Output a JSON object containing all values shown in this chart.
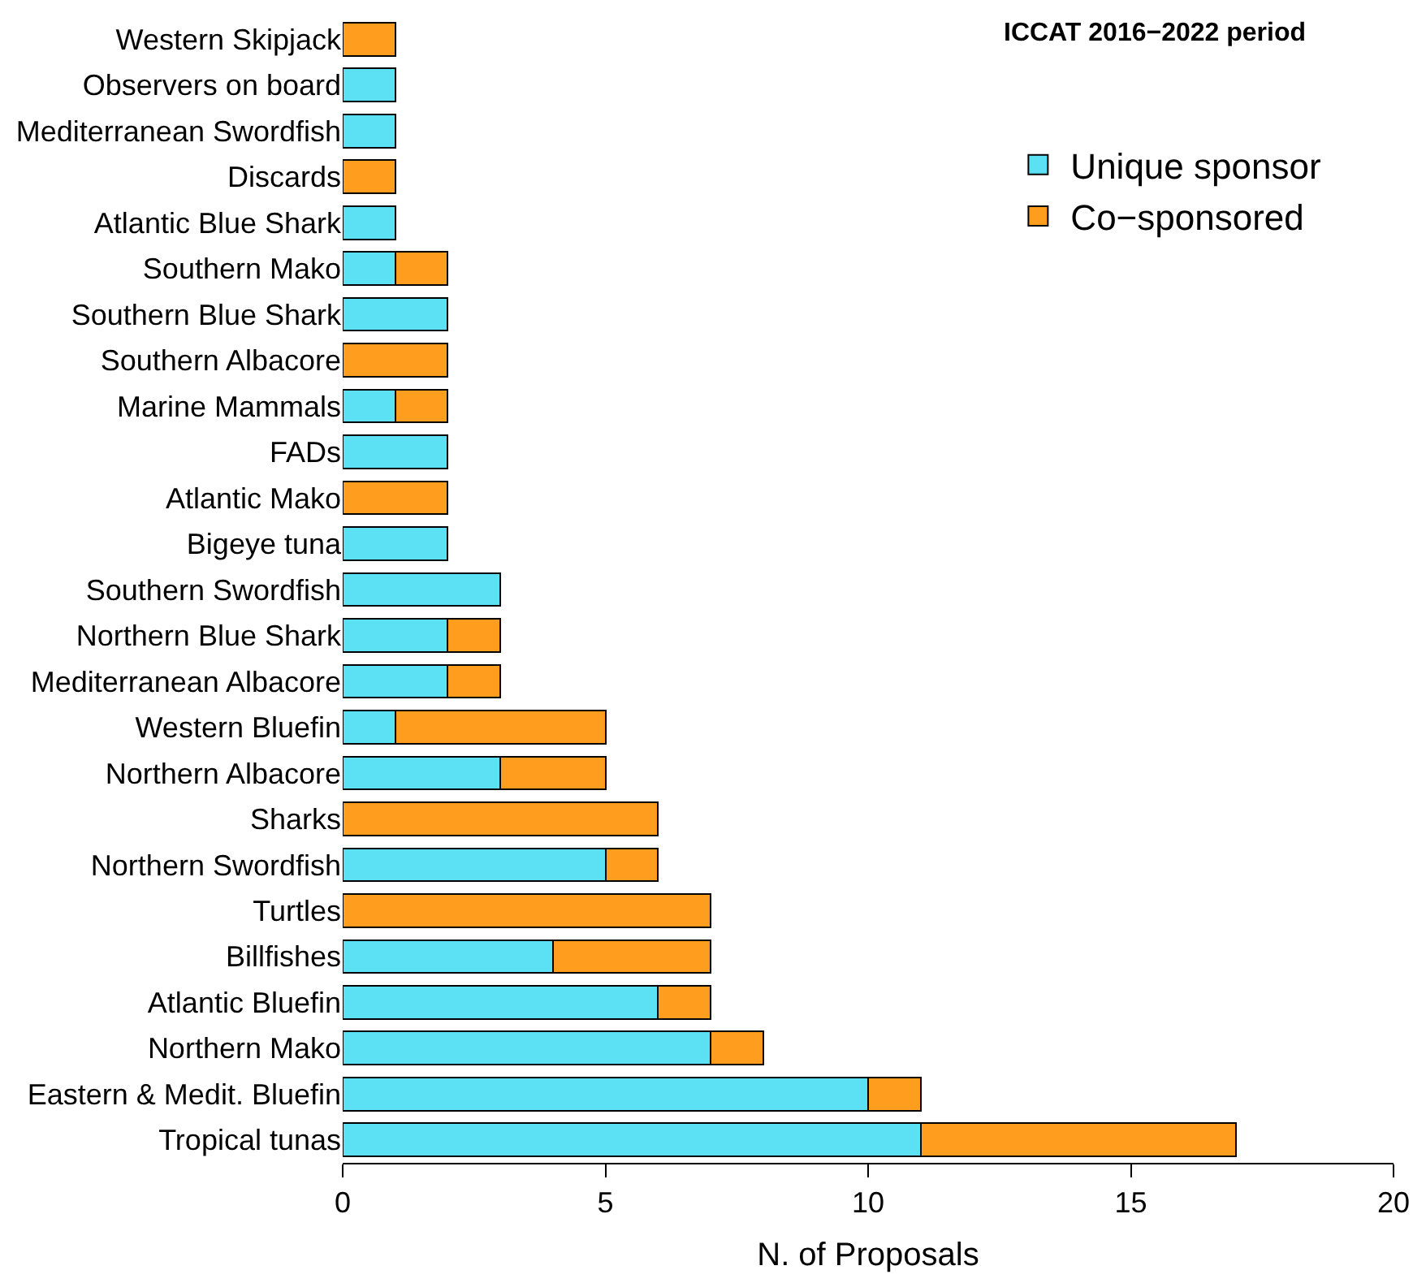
{
  "chart_data": {
    "type": "bar",
    "orientation": "horizontal",
    "stacked": true,
    "categories": [
      "Western Skipjack",
      "Observers on board",
      "Mediterranean Swordfish",
      "Discards",
      "Atlantic Blue Shark",
      "Southern Mako",
      "Southern Blue Shark",
      "Southern Albacore",
      "Marine Mammals",
      "FADs",
      "Atlantic Mako",
      "Bigeye tuna",
      "Southern Swordfish",
      "Northern Blue Shark",
      "Mediterranean Albacore",
      "Western Bluefin",
      "Northern Albacore",
      "Sharks",
      "Northern Swordfish",
      "Turtles",
      "Billfishes",
      "Atlantic Bluefin",
      "Northern Mako",
      "Eastern & Medit. Bluefin",
      "Tropical tunas"
    ],
    "series": [
      {
        "name": "Unique sponsor",
        "color": "#5ce1f4",
        "values": [
          null,
          1,
          1,
          null,
          1,
          1,
          2,
          null,
          1,
          2,
          null,
          2,
          3,
          2,
          2,
          1,
          3,
          null,
          5,
          null,
          4,
          6,
          7,
          10,
          11
        ]
      },
      {
        "name": "Co−sponsored",
        "color": "#ff9d1f",
        "values": [
          1,
          null,
          null,
          1,
          null,
          1,
          null,
          2,
          1,
          null,
          2,
          null,
          null,
          1,
          1,
          4,
          2,
          6,
          1,
          7,
          3,
          1,
          1,
          1,
          6
        ]
      }
    ],
    "xlabel": "N. of Proposals",
    "xlim": [
      0,
      20
    ],
    "xticks": [
      0,
      5,
      10,
      15,
      20
    ],
    "annotations": [
      "ICCAT 2016−2022 period"
    ],
    "legend": "top right"
  }
}
